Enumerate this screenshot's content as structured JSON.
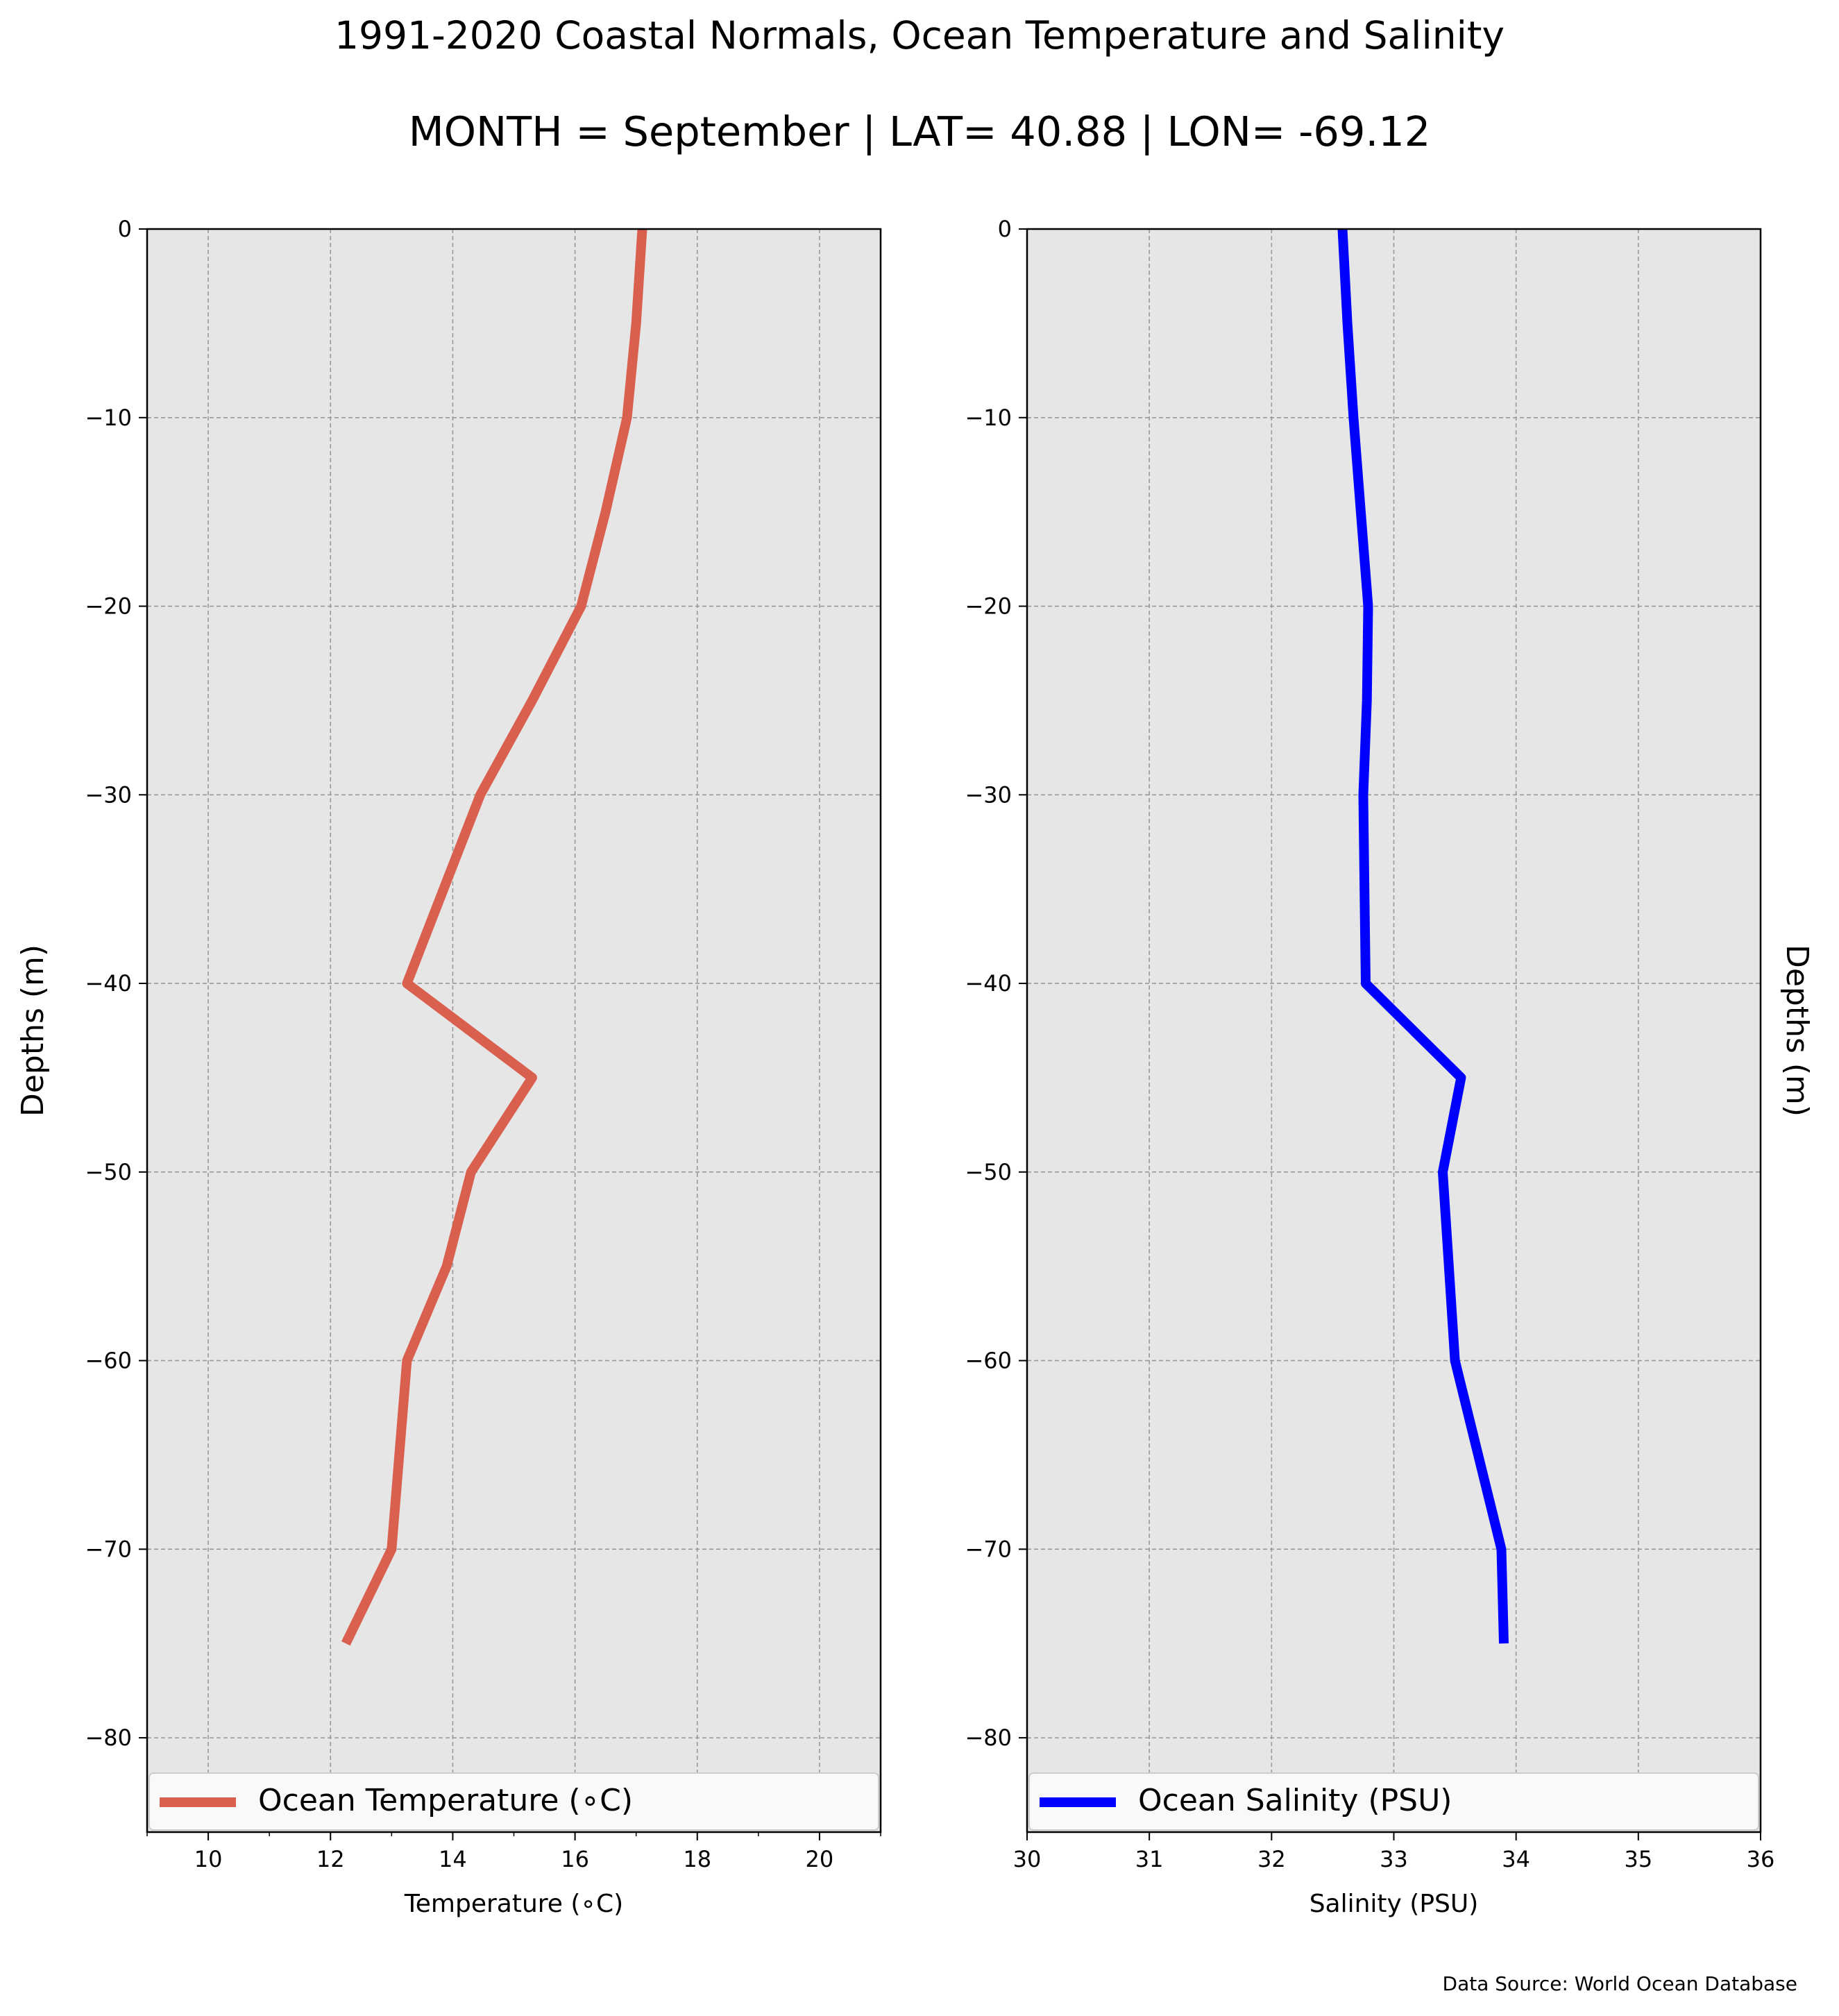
{
  "title_line1": "1991-2020 Coastal Normals, Ocean Temperature and Salinity",
  "title_line2": "MONTH = September | LAT= 40.88 | LON= -69.12",
  "source_note": "Data Source: World Ocean Database",
  "colors": {
    "temperature": "#d9604f",
    "salinity": "#0000ff",
    "plot_background": "#e6e6e6",
    "grid": "#999999"
  },
  "chart_data": [
    {
      "type": "line",
      "xlabel": "Temperature ($^\\circ$C)",
      "xlabel_display": "Temperature (∘C)",
      "ylabel": "Depths (m)",
      "ylabel_position": "left",
      "xlim": [
        9,
        21
      ],
      "ylim": [
        -85,
        0
      ],
      "xticks": [
        10,
        12,
        14,
        16,
        18,
        20
      ],
      "yticks": [
        0,
        -10,
        -20,
        -30,
        -40,
        -50,
        -60,
        -70,
        -80
      ],
      "grid": true,
      "legend_position": "bottom",
      "series": [
        {
          "name": "Ocean Temperature (∘C)",
          "color": "#d9604f",
          "x": [
            17.1,
            17.0,
            16.85,
            16.5,
            16.1,
            15.3,
            14.45,
            13.85,
            13.25,
            15.3,
            14.3,
            13.9,
            13.25,
            13.0,
            12.25
          ],
          "y": [
            0,
            -5,
            -10,
            -15,
            -20,
            -25,
            -30,
            -35,
            -40,
            -45,
            -50,
            -55,
            -60,
            -70,
            -75
          ]
        }
      ]
    },
    {
      "type": "line",
      "xlabel": "Salinity (PSU)",
      "ylabel": "Depths (m)",
      "ylabel_position": "right",
      "xlim": [
        30,
        36
      ],
      "ylim": [
        -85,
        0
      ],
      "xticks": [
        30,
        31,
        32,
        33,
        34,
        35,
        36
      ],
      "yticks": [
        0,
        -10,
        -20,
        -30,
        -40,
        -50,
        -60,
        -70,
        -80
      ],
      "grid": true,
      "legend_position": "bottom",
      "series": [
        {
          "name": "Ocean Salinity (PSU)",
          "color": "#0000ff",
          "x": [
            32.58,
            32.62,
            32.67,
            32.73,
            32.79,
            32.78,
            32.75,
            32.76,
            32.77,
            33.55,
            33.4,
            33.45,
            33.5,
            33.88,
            33.9
          ],
          "y": [
            0,
            -5,
            -10,
            -15,
            -20,
            -25,
            -30,
            -35,
            -40,
            -45,
            -50,
            -55,
            -60,
            -70,
            -75
          ]
        }
      ]
    }
  ]
}
